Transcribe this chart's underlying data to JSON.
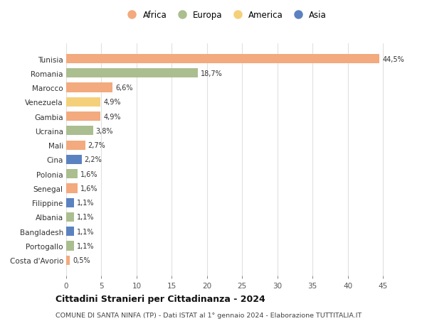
{
  "countries": [
    "Tunisia",
    "Romania",
    "Marocco",
    "Venezuela",
    "Gambia",
    "Ucraina",
    "Mali",
    "Cina",
    "Polonia",
    "Senegal",
    "Filippine",
    "Albania",
    "Bangladesh",
    "Portogallo",
    "Costa d'Avorio"
  ],
  "values": [
    44.5,
    18.7,
    6.6,
    4.9,
    4.9,
    3.8,
    2.7,
    2.2,
    1.6,
    1.6,
    1.1,
    1.1,
    1.1,
    1.1,
    0.5
  ],
  "labels": [
    "44,5%",
    "18,7%",
    "6,6%",
    "4,9%",
    "4,9%",
    "3,8%",
    "2,7%",
    "2,2%",
    "1,6%",
    "1,6%",
    "1,1%",
    "1,1%",
    "1,1%",
    "1,1%",
    "0,5%"
  ],
  "continents": [
    "Africa",
    "Europa",
    "Africa",
    "America",
    "Africa",
    "Europa",
    "Africa",
    "Asia",
    "Europa",
    "Africa",
    "Asia",
    "Europa",
    "Asia",
    "Europa",
    "Africa"
  ],
  "continent_colors": {
    "Africa": "#F2AA7E",
    "Europa": "#ABBE8F",
    "America": "#F5D07A",
    "Asia": "#5B82C0"
  },
  "legend_order": [
    "Africa",
    "Europa",
    "America",
    "Asia"
  ],
  "title": "Cittadini Stranieri per Cittadinanza - 2024",
  "subtitle": "COMUNE DI SANTA NINFA (TP) - Dati ISTAT al 1° gennaio 2024 - Elaborazione TUTTITALIA.IT",
  "xlim": [
    0,
    47
  ],
  "xticks": [
    0,
    5,
    10,
    15,
    20,
    25,
    30,
    35,
    40,
    45
  ],
  "background_color": "#ffffff",
  "grid_color": "#e0e0e0",
  "bar_height": 0.65
}
